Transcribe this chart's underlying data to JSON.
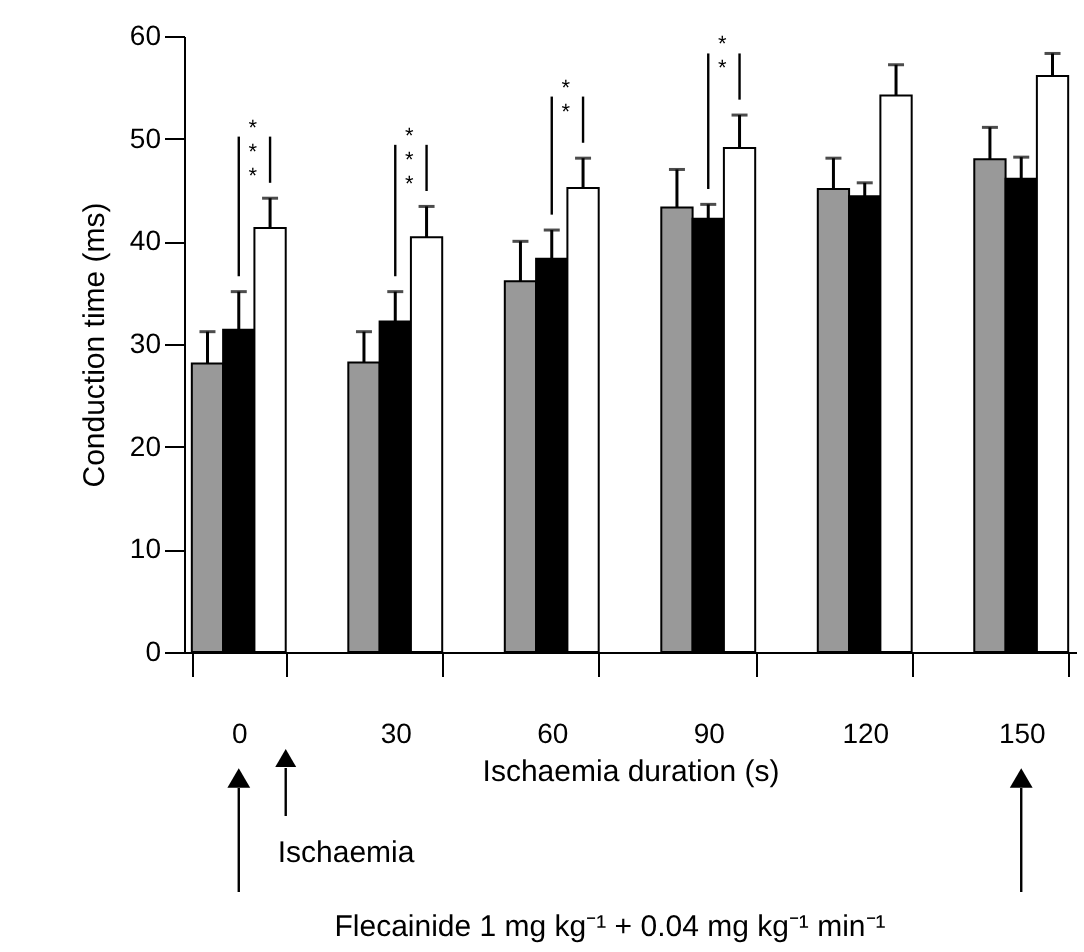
{
  "chart_data": {
    "type": "bar",
    "categories": [
      "0",
      "30",
      "60",
      "90",
      "120",
      "150"
    ],
    "xlabel": "Ischaemia duration (s)",
    "ylabel": "Conduction time (ms)",
    "ylim": [
      0,
      60
    ],
    "yticks": [
      0,
      10,
      20,
      30,
      40,
      50,
      60
    ],
    "grid": false,
    "series": [
      {
        "color": "#999999",
        "values": [
          28.1,
          28.2,
          36.1,
          43.3,
          45.1,
          48.0
        ],
        "errors": [
          [
            28.1,
            31.2
          ],
          [
            28.2,
            31.2
          ],
          [
            36.1,
            40.0
          ],
          [
            43.3,
            47.0
          ],
          [
            45.1,
            48.1
          ],
          [
            48.0,
            51.1
          ]
        ]
      },
      {
        "color": "#000000",
        "values": [
          31.4,
          32.2,
          38.3,
          42.2,
          44.4,
          46.1
        ],
        "errors": [
          [
            31.4,
            35.1
          ],
          [
            32.2,
            35.1
          ],
          [
            38.3,
            41.1
          ],
          [
            42.2,
            43.6
          ],
          [
            44.4,
            45.7
          ],
          [
            46.1,
            48.2
          ]
        ]
      },
      {
        "color": "#ffffff",
        "values": [
          41.3,
          40.4,
          45.2,
          49.1,
          54.2,
          56.1
        ],
        "errors": [
          [
            41.3,
            44.2
          ],
          [
            40.4,
            43.4
          ],
          [
            45.2,
            48.1
          ],
          [
            49.1,
            52.3
          ],
          [
            54.2,
            57.2
          ],
          [
            56.1,
            58.3
          ]
        ]
      }
    ],
    "annotations": [
      "***",
      "***",
      "**",
      "**",
      "Ischaemia",
      "Flecainide 1 mg kg⁻¹ + 0.04 mg kg⁻¹ min⁻¹"
    ]
  }
}
